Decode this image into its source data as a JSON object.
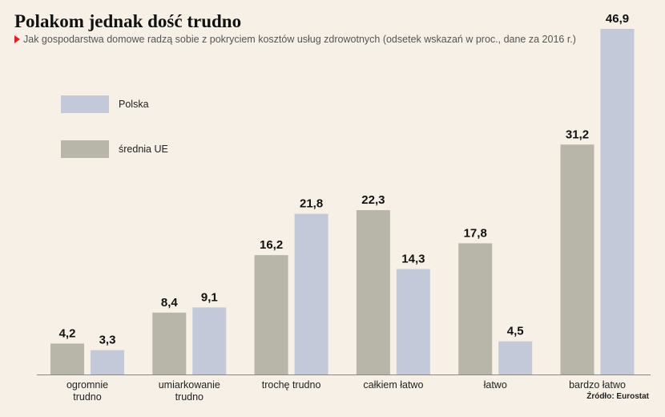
{
  "title": "Polakom jednak dość trudno",
  "subtitle": "Jak gospodarstwa domowe radzą sobie z pokryciem kosztów usług zdrowotnych (odsetek wskazań w proc., dane za 2016 r.)",
  "source": "Źródło: Eurostat",
  "colors": {
    "background": "#f6f0e6",
    "polska": "#c4c9da",
    "srednia_ue": "#b7b6a8",
    "accent": "#e02020"
  },
  "legend": [
    {
      "name": "Polska",
      "color": "#c4c9da"
    },
    {
      "name": "średnia UE",
      "color": "#b7b6a8"
    }
  ],
  "chart_data": {
    "type": "bar",
    "categories": [
      [
        "ogromnie",
        "trudno"
      ],
      [
        "umiarkowanie",
        "trudno"
      ],
      [
        "trochę trudno"
      ],
      [
        "całkiem łatwo"
      ],
      [
        "łatwo"
      ],
      [
        "bardzo łatwo"
      ]
    ],
    "series": [
      {
        "name": "średnia UE",
        "color": "#b7b6a8",
        "values": [
          4.2,
          8.4,
          16.2,
          22.3,
          17.8,
          31.2
        ],
        "labels": [
          "4,2",
          "8,4",
          "16,2",
          "22,3",
          "17,8",
          "31,2"
        ]
      },
      {
        "name": "Polska",
        "color": "#c4c9da",
        "values": [
          3.3,
          9.1,
          21.8,
          14.3,
          4.5,
          46.9
        ],
        "labels": [
          "3,3",
          "9,1",
          "21,8",
          "14,3",
          "4,5",
          "46,9"
        ]
      }
    ],
    "ylim": [
      0,
      46.9
    ],
    "grid": false,
    "legend_position": "top-left"
  }
}
